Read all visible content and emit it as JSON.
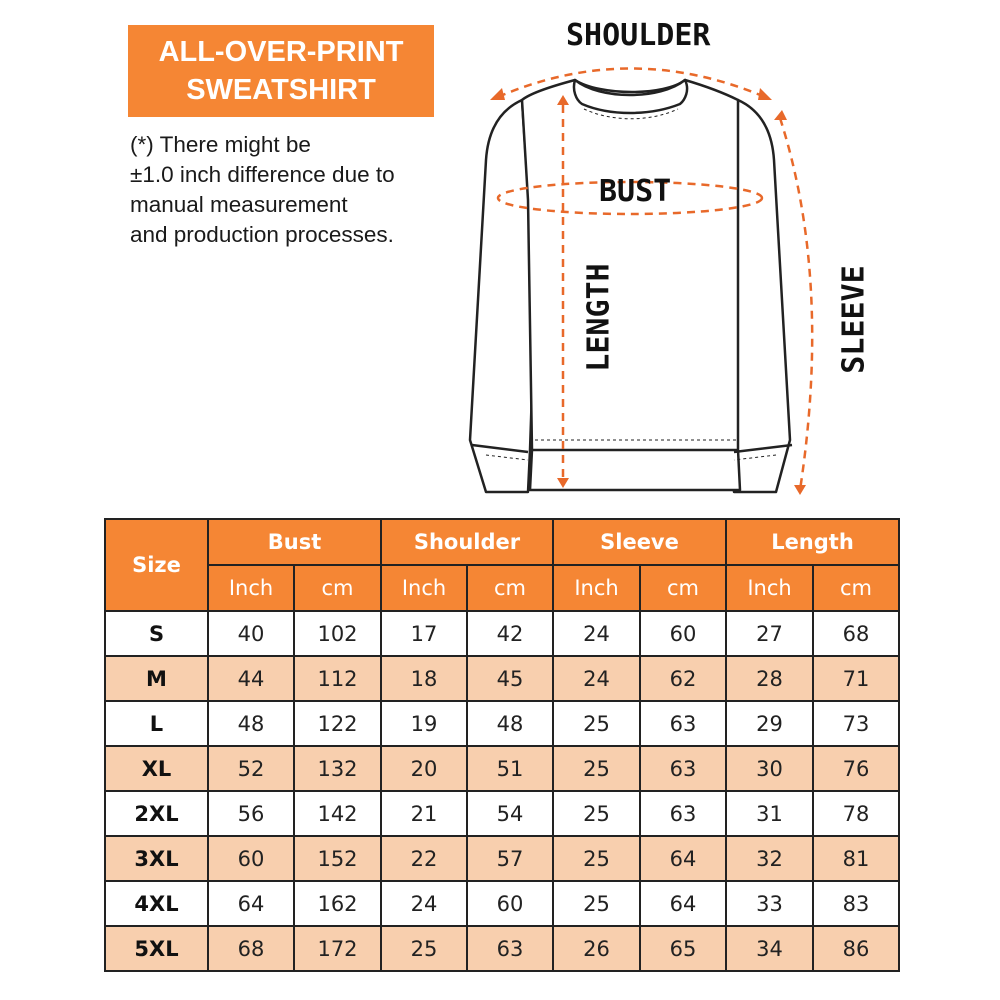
{
  "title": [
    "ALL-OVER-PRINT",
    "SWEATSHIRT"
  ],
  "note": [
    "(*) There might be",
    "±1.0 inch difference due to",
    "manual measurement",
    "and production processes."
  ],
  "diagram_labels": {
    "shoulder": "SHOULDER",
    "bust": "BUST",
    "length": "LENGTH",
    "sleeve": "SLEEVE"
  },
  "colors": {
    "accent": "#f58634",
    "alt_row": "#f8cfae"
  },
  "table": {
    "size_header": "Size",
    "groups": [
      "Bust",
      "Shoulder",
      "Sleeve",
      "Length"
    ],
    "units": [
      "Inch",
      "cm",
      "Inch",
      "cm",
      "Inch",
      "cm",
      "Inch",
      "cm"
    ],
    "rows": [
      [
        "S",
        "40",
        "102",
        "17",
        "42",
        "24",
        "60",
        "27",
        "68"
      ],
      [
        "M",
        "44",
        "112",
        "18",
        "45",
        "24",
        "62",
        "28",
        "71"
      ],
      [
        "L",
        "48",
        "122",
        "19",
        "48",
        "25",
        "63",
        "29",
        "73"
      ],
      [
        "XL",
        "52",
        "132",
        "20",
        "51",
        "25",
        "63",
        "30",
        "76"
      ],
      [
        "2XL",
        "56",
        "142",
        "21",
        "54",
        "25",
        "63",
        "31",
        "78"
      ],
      [
        "3XL",
        "60",
        "152",
        "22",
        "57",
        "25",
        "64",
        "32",
        "81"
      ],
      [
        "4XL",
        "64",
        "162",
        "24",
        "60",
        "25",
        "64",
        "33",
        "83"
      ],
      [
        "5XL",
        "68",
        "172",
        "25",
        "63",
        "26",
        "65",
        "34",
        "86"
      ]
    ]
  }
}
